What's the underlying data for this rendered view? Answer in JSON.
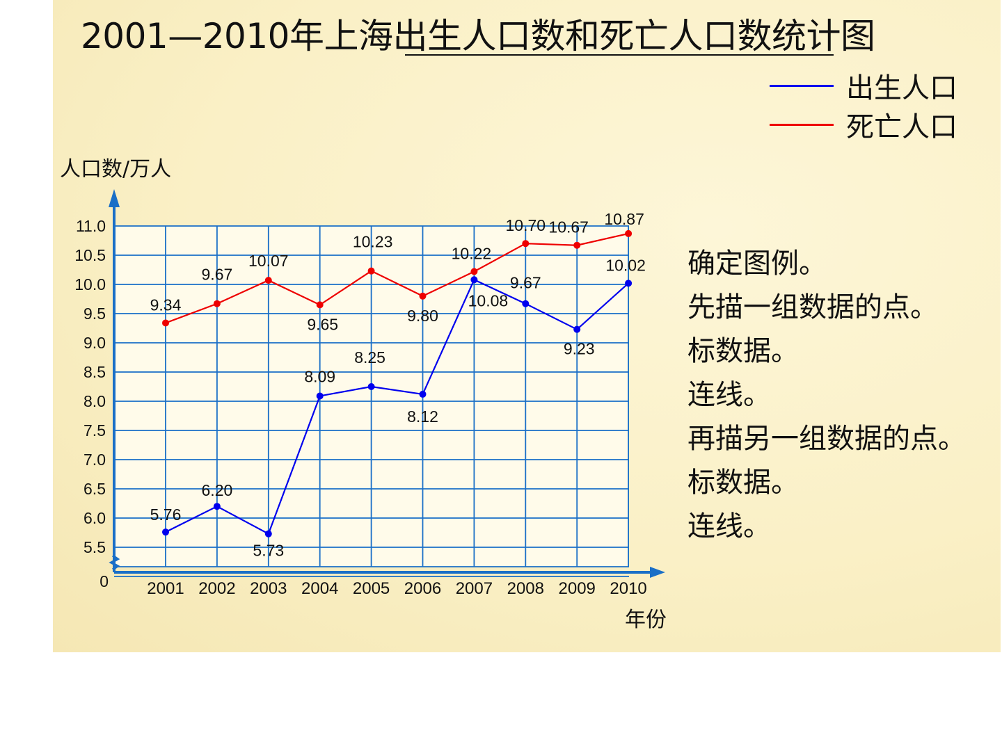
{
  "title": "2001—2010年上海出生人口数和死亡人口数统计图",
  "legend": [
    {
      "label": "出生人口",
      "color": "#0000ee"
    },
    {
      "label": "死亡人口",
      "color": "#ee0000"
    }
  ],
  "steps": [
    "确定图例。",
    "先描一组数据的点。",
    "标数据。",
    "连线。",
    "再描另一组数据的点。",
    "标数据。",
    "连线。"
  ],
  "colors": {
    "grid": "#1a6fc7",
    "axis": "#1a6fc7",
    "background": "#faf0c6",
    "plot_bg": "#fffbea"
  },
  "chart_data": {
    "type": "line",
    "xlabel": "年份",
    "ylabel": "人口数/万人",
    "categories": [
      "2001",
      "2002",
      "2003",
      "2004",
      "2005",
      "2006",
      "2007",
      "2008",
      "2009",
      "2010"
    ],
    "ylim": [
      5.0,
      11.0
    ],
    "y_ticks": [
      "11.0",
      "10.5",
      "10.0",
      "9.5",
      "9.0",
      "8.5",
      "8.0",
      "7.5",
      "7.0",
      "6.5",
      "6.0",
      "5.5",
      "0"
    ],
    "axis_break": true,
    "grid": true,
    "legend_position": "top-right",
    "series": [
      {
        "name": "出生人口",
        "color": "#0000ee",
        "values": [
          5.76,
          6.2,
          5.73,
          8.09,
          8.25,
          8.12,
          10.08,
          9.67,
          9.23,
          10.02
        ],
        "labels": [
          "5.76",
          "6.20",
          "5.73",
          "8.09",
          "8.25",
          "8.12",
          "10.08",
          "9.67",
          "9.23",
          "10.02"
        ]
      },
      {
        "name": "死亡人口",
        "color": "#ee0000",
        "values": [
          9.34,
          9.67,
          10.07,
          9.65,
          10.23,
          9.8,
          10.22,
          10.7,
          10.67,
          10.87
        ],
        "labels": [
          "9.34",
          "9.67",
          "10.07",
          "9.65",
          "10.23",
          "9.80",
          "10.22",
          "10.70",
          "10.67",
          "10.87"
        ]
      }
    ]
  }
}
